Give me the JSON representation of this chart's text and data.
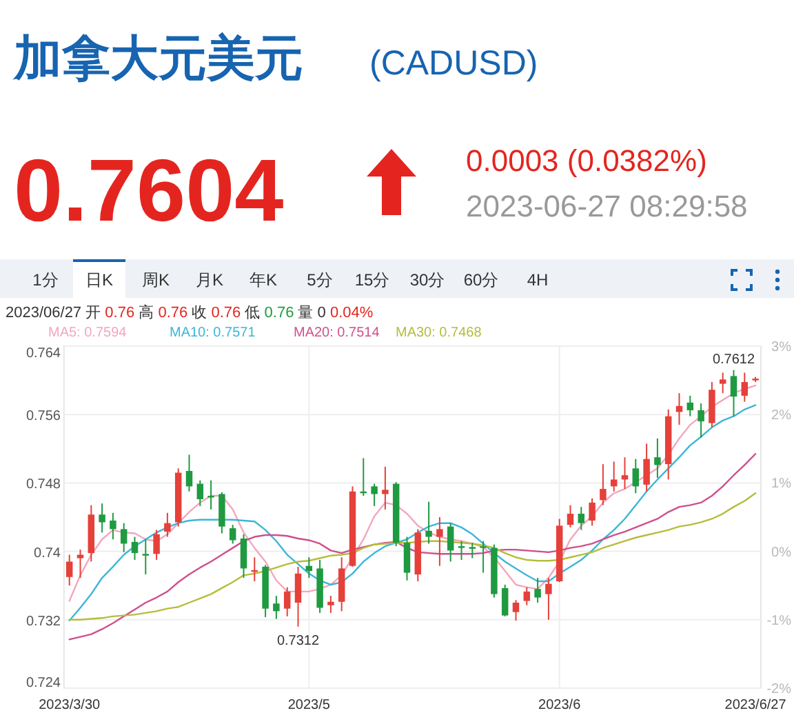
{
  "chart_data": {
    "type": "candlestick",
    "title": "加拿大元美元",
    "subtitle": "(CADUSD)",
    "annotations": [
      "0.7604",
      "0.0003 (0.0382%)",
      "2023-06-27 08:29:58",
      "1分",
      "日K",
      "周K",
      "月K",
      "年K",
      "5分",
      "15分",
      "30分",
      "60分",
      "4H",
      "2023/06/27 开 0.76 高 0.76 收 0.76 低 0.76 量 0 0.04%",
      {
        "text": "0.7312",
        "y": 0.7312
      },
      {
        "text": "0.7612",
        "y": 0.7612
      }
    ],
    "categories": [
      "2023/3/30",
      null,
      null,
      null,
      null,
      null,
      null,
      null,
      null,
      null,
      null,
      null,
      null,
      null,
      null,
      null,
      null,
      null,
      null,
      null,
      null,
      null,
      "2023/5",
      null,
      null,
      null,
      null,
      null,
      null,
      null,
      null,
      null,
      null,
      null,
      null,
      null,
      null,
      null,
      null,
      null,
      null,
      null,
      null,
      null,
      null,
      "2023/6",
      null,
      null,
      null,
      null,
      null,
      null,
      null,
      null,
      null,
      null,
      null,
      null,
      null,
      null,
      null,
      null,
      null,
      "2023/6/27"
    ],
    "ohlc": [
      [
        0.737,
        0.7396,
        0.736,
        0.7388
      ],
      [
        0.7392,
        0.7402,
        0.7369,
        0.7396
      ],
      [
        0.7398,
        0.7454,
        0.7388,
        0.7443
      ],
      [
        0.7443,
        0.7456,
        0.7422,
        0.7434
      ],
      [
        0.7436,
        0.7445,
        0.7414,
        0.7426
      ],
      [
        0.7426,
        0.7433,
        0.7399,
        0.7409
      ],
      [
        0.7411,
        0.7417,
        0.739,
        0.7398
      ],
      [
        0.7397,
        0.7414,
        0.7373,
        0.7395
      ],
      [
        0.7397,
        0.7425,
        0.739,
        0.742
      ],
      [
        0.7423,
        0.7445,
        0.7417,
        0.7433
      ],
      [
        0.7434,
        0.7497,
        0.7429,
        0.7492
      ],
      [
        0.7494,
        0.7513,
        0.747,
        0.7476
      ],
      [
        0.7479,
        0.7483,
        0.7453,
        0.7461
      ],
      [
        0.7465,
        0.7483,
        0.7449,
        0.7463
      ],
      [
        0.7467,
        0.7469,
        0.7421,
        0.7429
      ],
      [
        0.7427,
        0.7431,
        0.7409,
        0.7413
      ],
      [
        0.7415,
        0.742,
        0.7369,
        0.738
      ],
      [
        0.7376,
        0.7393,
        0.7365,
        0.7378
      ],
      [
        0.7382,
        0.7384,
        0.7323,
        0.7333
      ],
      [
        0.7339,
        0.7348,
        0.7321,
        0.733
      ],
      [
        0.7333,
        0.7358,
        0.7324,
        0.7353
      ],
      [
        0.734,
        0.7382,
        0.7312,
        0.7374
      ],
      [
        0.7383,
        0.7393,
        0.7369,
        0.7377
      ],
      [
        0.738,
        0.739,
        0.7328,
        0.7334
      ],
      [
        0.7337,
        0.7348,
        0.7328,
        0.7341
      ],
      [
        0.7341,
        0.7393,
        0.733,
        0.738
      ],
      [
        0.7383,
        0.7476,
        0.7382,
        0.747
      ],
      [
        0.747,
        0.7509,
        0.7465,
        0.7468
      ],
      [
        0.7476,
        0.7479,
        0.7453,
        0.7467
      ],
      [
        0.7467,
        0.7499,
        0.7449,
        0.7472
      ],
      [
        0.7479,
        0.7481,
        0.7406,
        0.741
      ],
      [
        0.741,
        0.7417,
        0.7366,
        0.7375
      ],
      [
        0.7373,
        0.7426,
        0.7365,
        0.7422
      ],
      [
        0.7424,
        0.7458,
        0.7409,
        0.7417
      ],
      [
        0.7417,
        0.744,
        0.7383,
        0.7426
      ],
      [
        0.7429,
        0.7433,
        0.7388,
        0.7401
      ],
      [
        0.7406,
        0.7412,
        0.739,
        0.7404
      ],
      [
        0.7405,
        0.741,
        0.7392,
        0.7403
      ],
      [
        0.7406,
        0.7412,
        0.7375,
        0.7404
      ],
      [
        0.7404,
        0.7408,
        0.7346,
        0.735
      ],
      [
        0.7357,
        0.7361,
        0.7324,
        0.7325
      ],
      [
        0.7329,
        0.7343,
        0.7319,
        0.734
      ],
      [
        0.7342,
        0.7358,
        0.7337,
        0.7353
      ],
      [
        0.7356,
        0.7369,
        0.734,
        0.7346
      ],
      [
        0.735,
        0.7369,
        0.732,
        0.7362
      ],
      [
        0.7365,
        0.7438,
        0.7364,
        0.743
      ],
      [
        0.7431,
        0.7454,
        0.7428,
        0.7444
      ],
      [
        0.7444,
        0.7452,
        0.7425,
        0.7433
      ],
      [
        0.7436,
        0.7462,
        0.743,
        0.7457
      ],
      [
        0.746,
        0.7502,
        0.7454,
        0.7473
      ],
      [
        0.7476,
        0.7505,
        0.747,
        0.7484
      ],
      [
        0.7484,
        0.751,
        0.7473,
        0.7489
      ],
      [
        0.7497,
        0.7508,
        0.7468,
        0.7476
      ],
      [
        0.7478,
        0.7526,
        0.747,
        0.7508
      ],
      [
        0.751,
        0.7532,
        0.7486,
        0.7501
      ],
      [
        0.7502,
        0.7566,
        0.7484,
        0.7558
      ],
      [
        0.7563,
        0.7585,
        0.7548,
        0.757
      ],
      [
        0.7574,
        0.7582,
        0.7558,
        0.7565
      ],
      [
        0.7565,
        0.7573,
        0.7533,
        0.7552
      ],
      [
        0.755,
        0.7598,
        0.7545,
        0.7589
      ],
      [
        0.7596,
        0.7609,
        0.7585,
        0.7601
      ],
      [
        0.7605,
        0.7612,
        0.7558,
        0.7581
      ],
      [
        0.7582,
        0.7609,
        0.7575,
        0.7598
      ],
      [
        0.76,
        0.7604,
        0.7598,
        0.7602
      ]
    ],
    "colors": [
      "#e5403a",
      "#e5403a",
      "#e5403a",
      "#1f9a41",
      "#1f9a41",
      "#1f9a41",
      "#1f9a41",
      "#1f9a41",
      "#e5403a",
      "#e5403a",
      "#e5403a",
      "#1f9a41",
      "#1f9a41",
      "#1f9a41",
      "#1f9a41",
      "#1f9a41",
      "#1f9a41",
      "#e5403a",
      "#1f9a41",
      "#1f9a41",
      "#e5403a",
      "#e5403a",
      "#1f9a41",
      "#1f9a41",
      "#e5403a",
      "#e5403a",
      "#e5403a",
      "#1f9a41",
      "#1f9a41",
      "#e5403a",
      "#1f9a41",
      "#1f9a41",
      "#e5403a",
      "#1f9a41",
      "#e5403a",
      "#1f9a41",
      "#1f9a41",
      "#1f9a41",
      "#1f9a41",
      "#1f9a41",
      "#1f9a41",
      "#e5403a",
      "#e5403a",
      "#1f9a41",
      "#e5403a",
      "#e5403a",
      "#e5403a",
      "#1f9a41",
      "#e5403a",
      "#e5403a",
      "#e5403a",
      "#e5403a",
      "#1f9a41",
      "#e5403a",
      "#1f9a41",
      "#e5403a",
      "#e5403a",
      "#1f9a41",
      "#1f9a41",
      "#e5403a",
      "#e5403a",
      "#1f9a41",
      "#e5403a",
      "#e5403a"
    ],
    "series": [
      {
        "name": "MA5: 0.7594",
        "type": "line",
        "color": "#f2a7bd",
        "values": [
          0.7342,
          0.7372,
          0.7396,
          0.7414,
          0.7425,
          0.7422,
          0.7421,
          0.7414,
          0.7412,
          0.742,
          0.7433,
          0.7446,
          0.7457,
          0.7465,
          0.7465,
          0.7449,
          0.7422,
          0.7404,
          0.7388,
          0.7366,
          0.7353,
          0.7353,
          0.7353,
          0.7356,
          0.7361,
          0.7372,
          0.7393,
          0.7414,
          0.7441,
          0.7457,
          0.7454,
          0.7444,
          0.743,
          0.7422,
          0.7417,
          0.7414,
          0.7412,
          0.7409,
          0.7405,
          0.7393,
          0.7377,
          0.7361,
          0.7358,
          0.7356,
          0.7369,
          0.7388,
          0.7414,
          0.743,
          0.7441,
          0.7457,
          0.7468,
          0.7473,
          0.7481,
          0.7489,
          0.7497,
          0.7513,
          0.7532,
          0.7548,
          0.7558,
          0.7569,
          0.7577,
          0.7585,
          0.759,
          0.7594
        ]
      },
      {
        "name": "MA10: 0.7571",
        "type": "line",
        "color": "#3cb6d6",
        "values": [
          0.7319,
          0.7334,
          0.735,
          0.7369,
          0.7382,
          0.7396,
          0.7406,
          0.7414,
          0.7422,
          0.7428,
          0.7433,
          0.7436,
          0.7437,
          0.7437,
          0.7437,
          0.7437,
          0.7436,
          0.7435,
          0.7425,
          0.7412,
          0.7396,
          0.7385,
          0.7374,
          0.7366,
          0.7361,
          0.7364,
          0.7374,
          0.7388,
          0.7398,
          0.7406,
          0.741,
          0.7414,
          0.7422,
          0.7429,
          0.7433,
          0.7433,
          0.7428,
          0.742,
          0.7409,
          0.7398,
          0.7388,
          0.738,
          0.7372,
          0.7365,
          0.7365,
          0.7374,
          0.7382,
          0.739,
          0.7401,
          0.7414,
          0.7425,
          0.7438,
          0.7454,
          0.747,
          0.7484,
          0.7497,
          0.751,
          0.7524,
          0.7534,
          0.7545,
          0.7553,
          0.7558,
          0.7566,
          0.7571
        ]
      },
      {
        "name": "MA20: 0.7514",
        "type": "line",
        "color": "#cf4f8c",
        "values": [
          0.7297,
          0.73,
          0.7303,
          0.7309,
          0.7316,
          0.7324,
          0.7332,
          0.734,
          0.7346,
          0.7353,
          0.7364,
          0.7373,
          0.7381,
          0.7388,
          0.7396,
          0.7404,
          0.7412,
          0.7417,
          0.7419,
          0.7419,
          0.7418,
          0.7415,
          0.7413,
          0.7409,
          0.7401,
          0.7398,
          0.7402,
          0.7405,
          0.7408,
          0.741,
          0.7411,
          0.7404,
          0.7399,
          0.7398,
          0.7397,
          0.7397,
          0.7397,
          0.7397,
          0.7398,
          0.7401,
          0.7402,
          0.7402,
          0.7401,
          0.74,
          0.7399,
          0.7401,
          0.7404,
          0.7406,
          0.7409,
          0.7414,
          0.7419,
          0.7423,
          0.7428,
          0.7433,
          0.7438,
          0.7446,
          0.7452,
          0.7454,
          0.7457,
          0.7465,
          0.7476,
          0.7489,
          0.7501,
          0.7514
        ]
      },
      {
        "name": "MA30: 0.7468",
        "type": "line",
        "color": "#b5bd3c",
        "values": [
          0.732,
          0.732,
          0.7321,
          0.7322,
          0.7324,
          0.7325,
          0.7326,
          0.7328,
          0.733,
          0.7333,
          0.7335,
          0.734,
          0.7345,
          0.735,
          0.7357,
          0.7364,
          0.7372,
          0.7374,
          0.7377,
          0.7381,
          0.7385,
          0.7388,
          0.7389,
          0.7392,
          0.7395,
          0.7396,
          0.7398,
          0.7404,
          0.7408,
          0.7409,
          0.741,
          0.741,
          0.7411,
          0.7412,
          0.7412,
          0.7411,
          0.741,
          0.7409,
          0.7407,
          0.7404,
          0.7398,
          0.7393,
          0.739,
          0.7389,
          0.7389,
          0.739,
          0.7393,
          0.7396,
          0.7399,
          0.7404,
          0.7408,
          0.7412,
          0.7416,
          0.7419,
          0.7422,
          0.7425,
          0.7429,
          0.7431,
          0.7434,
          0.7438,
          0.7444,
          0.7452,
          0.7459,
          0.7468
        ]
      }
    ],
    "ylim": [
      0.724,
      0.764
    ],
    "yticks": [
      0.724,
      0.732,
      0.74,
      0.748,
      0.756,
      0.764
    ],
    "y2lim": [
      -2,
      3
    ],
    "y2ticks": [
      {
        "value": -2,
        "label": "-2%"
      },
      {
        "value": -1,
        "label": "-1%"
      },
      {
        "value": 0,
        "label": "0%"
      },
      {
        "value": 1,
        "label": "1%"
      },
      {
        "value": 2,
        "label": "2%"
      },
      {
        "value": 3,
        "label": "3%"
      }
    ],
    "grid": true,
    "legend": "top left"
  }
}
